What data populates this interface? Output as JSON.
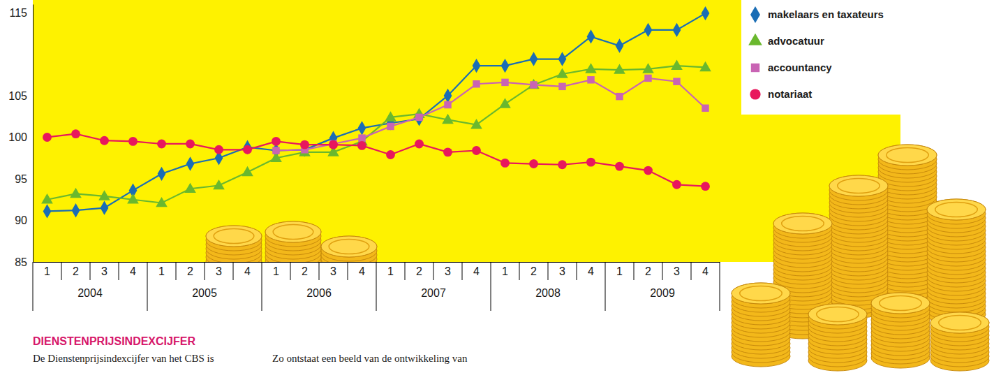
{
  "chart_data": {
    "type": "line",
    "title": "DIENSTENPRIJSINDEXCIJFER",
    "annotations": [
      "De Dienstenprijsindexcijfer van het CBS is",
      "Zo ontstaat een beeld van de ontwikkeling van"
    ],
    "categories": [
      "1",
      "2",
      "3",
      "4",
      "1",
      "2",
      "3",
      "4",
      "1",
      "2",
      "3",
      "4",
      "1",
      "2",
      "3",
      "4",
      "1",
      "2",
      "3",
      "4",
      "1",
      "2",
      "3",
      "4"
    ],
    "x_groups": [
      "2004",
      "2005",
      "2006",
      "2007",
      "2008",
      "2009"
    ],
    "ylim": [
      85,
      116
    ],
    "yticks": [
      85,
      90,
      95,
      100,
      105,
      115
    ],
    "grid": false,
    "legend": "top-right",
    "series": [
      {
        "name": "makelaars en taxateurs",
        "color": "#1a6db5",
        "marker": "diamond",
        "values": [
          91.1,
          91.2,
          91.5,
          93.6,
          95.6,
          96.8,
          97.5,
          98.8,
          98.4,
          98.5,
          99.9,
          101.1,
          101.7,
          102.2,
          105.0,
          108.6,
          108.6,
          109.4,
          109.4,
          112.1,
          111.0,
          112.9,
          112.9,
          114.9
        ]
      },
      {
        "name": "advocatuur",
        "color": "#6ab82e",
        "marker": "triangle",
        "values": [
          92.5,
          93.2,
          92.9,
          92.5,
          92.1,
          93.8,
          94.2,
          95.8,
          97.5,
          98.2,
          98.2,
          99.5,
          102.4,
          102.8,
          102.1,
          101.5,
          104.0,
          106.3,
          107.6,
          108.2,
          108.1,
          108.2,
          108.6,
          108.4
        ]
      },
      {
        "name": "accountancy",
        "color": "#c964b4",
        "marker": "square",
        "values": [
          null,
          null,
          null,
          null,
          null,
          null,
          null,
          null,
          98.4,
          98.5,
          99.2,
          99.9,
          101.3,
          102.4,
          103.9,
          106.4,
          106.6,
          106.3,
          106.1,
          106.9,
          104.9,
          107.1,
          106.7,
          103.5
        ]
      },
      {
        "name": "notariaat",
        "color": "#e8175d",
        "marker": "circle",
        "values": [
          100.0,
          100.4,
          99.6,
          99.5,
          99.2,
          99.2,
          98.5,
          98.5,
          99.5,
          99.1,
          99.1,
          99.0,
          97.9,
          99.2,
          98.2,
          98.4,
          96.9,
          96.8,
          96.7,
          97.0,
          96.5,
          96.0,
          94.3,
          94.1
        ]
      }
    ]
  }
}
